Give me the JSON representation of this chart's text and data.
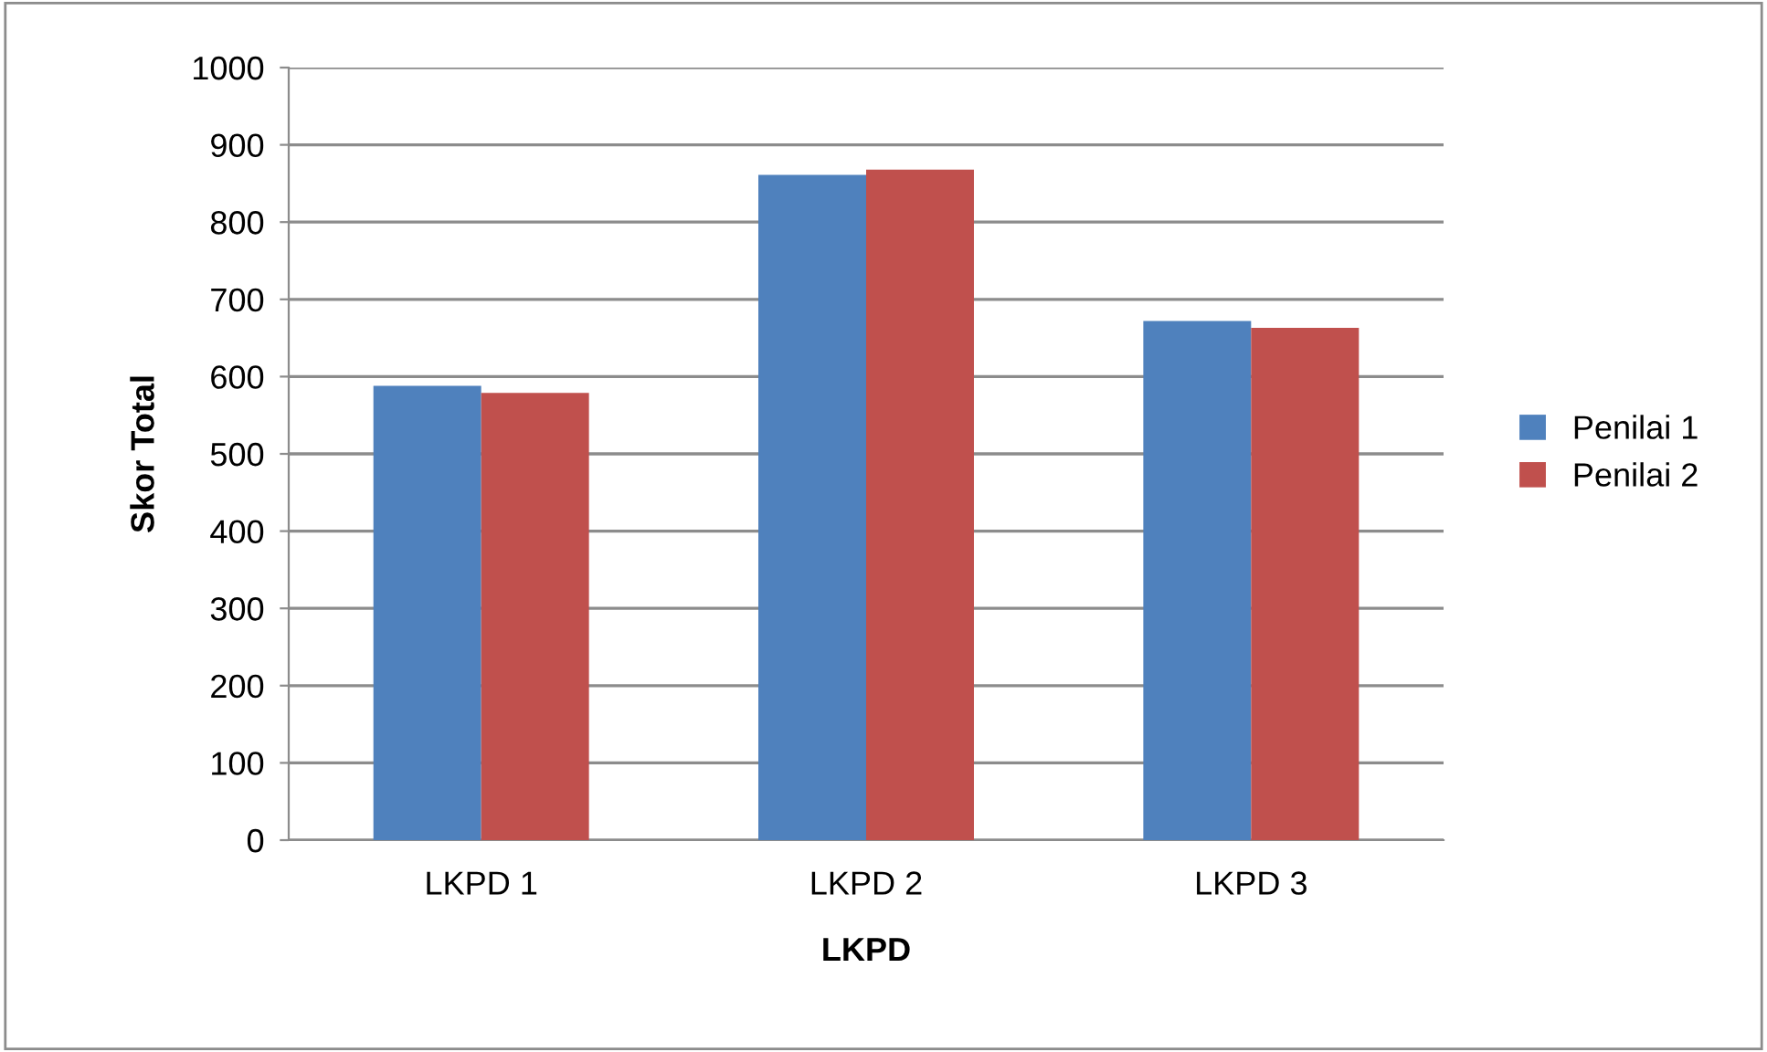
{
  "chart_data": {
    "type": "bar",
    "xlabel": "LKPD",
    "ylabel": "Skor Total",
    "categories": [
      "LKPD 1",
      "LKPD 2",
      "LKPD 3"
    ],
    "series": [
      {
        "name": "Penilai 1",
        "color": "#4f81bd",
        "values": [
          588,
          861,
          672
        ]
      },
      {
        "name": "Penilai 2",
        "color": "#c0504d",
        "values": [
          579,
          868,
          663
        ]
      }
    ],
    "ylim": [
      0,
      1000
    ],
    "yticks": [
      0,
      100,
      200,
      300,
      400,
      500,
      600,
      700,
      800,
      900,
      1000
    ],
    "grid": "y",
    "legend": "right"
  }
}
